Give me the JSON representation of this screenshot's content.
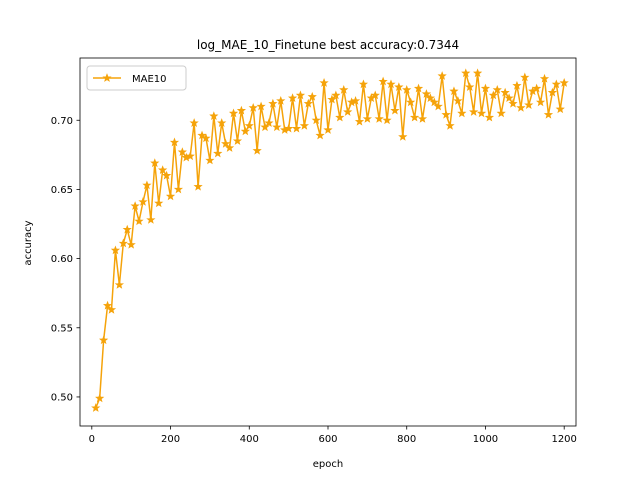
{
  "chart_data": {
    "type": "line",
    "title": "log_MAE_10_Finetune best accuracy:0.7344",
    "xlabel": "epoch",
    "ylabel": "accuracy",
    "xlim": [
      -30,
      1230
    ],
    "ylim": [
      0.479,
      0.745
    ],
    "xticks": [
      0,
      200,
      400,
      600,
      800,
      1000,
      1200
    ],
    "yticks": [
      0.5,
      0.55,
      0.6,
      0.65,
      0.7
    ],
    "xtick_labels": [
      "0",
      "200",
      "400",
      "600",
      "800",
      "1000",
      "1200"
    ],
    "ytick_labels": [
      "0.50",
      "0.55",
      "0.60",
      "0.65",
      "0.70"
    ],
    "grid": false,
    "legend_position": "top-left",
    "series": [
      {
        "name": "MAE10",
        "color": "#f5a30a",
        "marker": "star",
        "x": [
          10,
          20,
          30,
          40,
          50,
          60,
          70,
          80,
          90,
          100,
          110,
          120,
          130,
          140,
          150,
          160,
          170,
          180,
          190,
          200,
          210,
          220,
          230,
          240,
          250,
          260,
          270,
          280,
          290,
          300,
          310,
          320,
          330,
          340,
          350,
          360,
          370,
          380,
          390,
          400,
          410,
          420,
          430,
          440,
          450,
          460,
          470,
          480,
          490,
          500,
          510,
          520,
          530,
          540,
          550,
          560,
          570,
          580,
          590,
          600,
          610,
          620,
          630,
          640,
          650,
          660,
          670,
          680,
          690,
          700,
          710,
          720,
          730,
          740,
          750,
          760,
          770,
          780,
          790,
          800,
          810,
          820,
          830,
          840,
          850,
          860,
          870,
          880,
          890,
          900,
          910,
          920,
          930,
          940,
          950,
          960,
          970,
          980,
          990,
          1000,
          1010,
          1020,
          1030,
          1040,
          1050,
          1060,
          1070,
          1080,
          1090,
          1100,
          1110,
          1120,
          1130,
          1140,
          1150,
          1160,
          1170,
          1180,
          1190,
          1200
        ],
        "y": [
          0.492,
          0.499,
          0.541,
          0.566,
          0.563,
          0.606,
          0.581,
          0.611,
          0.621,
          0.61,
          0.638,
          0.627,
          0.641,
          0.653,
          0.628,
          0.669,
          0.64,
          0.664,
          0.66,
          0.645,
          0.684,
          0.65,
          0.677,
          0.673,
          0.674,
          0.698,
          0.652,
          0.689,
          0.687,
          0.671,
          0.703,
          0.676,
          0.698,
          0.683,
          0.68,
          0.705,
          0.685,
          0.707,
          0.692,
          0.696,
          0.709,
          0.678,
          0.71,
          0.695,
          0.698,
          0.712,
          0.695,
          0.714,
          0.693,
          0.694,
          0.716,
          0.694,
          0.718,
          0.696,
          0.712,
          0.717,
          0.7,
          0.689,
          0.727,
          0.693,
          0.715,
          0.718,
          0.702,
          0.722,
          0.706,
          0.713,
          0.714,
          0.699,
          0.726,
          0.701,
          0.716,
          0.718,
          0.701,
          0.728,
          0.7,
          0.726,
          0.707,
          0.724,
          0.688,
          0.722,
          0.713,
          0.702,
          0.723,
          0.701,
          0.719,
          0.716,
          0.713,
          0.71,
          0.732,
          0.704,
          0.696,
          0.721,
          0.714,
          0.705,
          0.734,
          0.724,
          0.706,
          0.734,
          0.705,
          0.723,
          0.702,
          0.718,
          0.722,
          0.705,
          0.72,
          0.716,
          0.712,
          0.725,
          0.709,
          0.731,
          0.711,
          0.721,
          0.723,
          0.713,
          0.73,
          0.704,
          0.72,
          0.726,
          0.708,
          0.727
        ]
      }
    ]
  }
}
